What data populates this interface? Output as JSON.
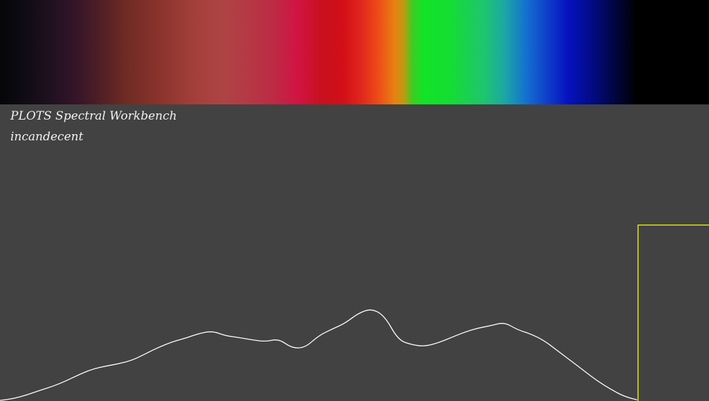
{
  "app": {
    "title": "PLOTS Spectral Workbench",
    "sample_name": "incandecent"
  },
  "colors": {
    "background": "#424242",
    "trace": "#ffffff",
    "marker": "#ffff00"
  },
  "chart_data": {
    "type": "line",
    "title": "",
    "xlabel": "",
    "ylabel": "",
    "grid": false,
    "series": [
      {
        "values": [
          0.002,
          0.008,
          0.02,
          0.036,
          0.05,
          0.068,
          0.09,
          0.108,
          0.118,
          0.126,
          0.138,
          0.16,
          0.182,
          0.2,
          0.212,
          0.228,
          0.236,
          0.22,
          0.214,
          0.206,
          0.2,
          0.21,
          0.178,
          0.18,
          0.22,
          0.242,
          0.262,
          0.296,
          0.312,
          0.286,
          0.206,
          0.19,
          0.184,
          0.196,
          0.214,
          0.232,
          0.246,
          0.254,
          0.266,
          0.24,
          0.226,
          0.204,
          0.17,
          0.136,
          0.102,
          0.068,
          0.04,
          0.016,
          0.004
        ]
      }
    ]
  }
}
